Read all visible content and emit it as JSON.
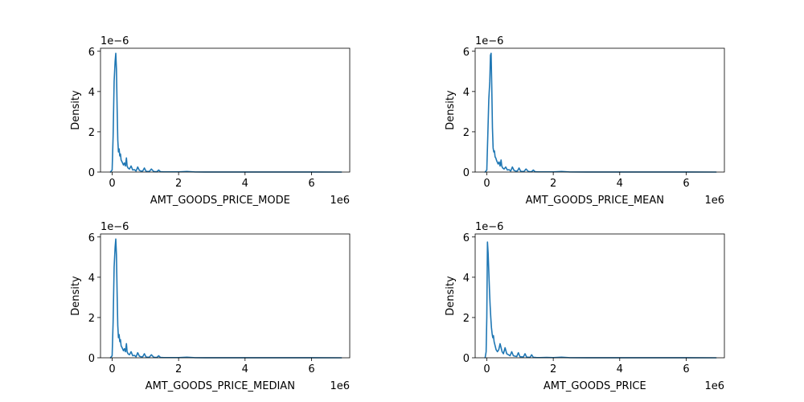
{
  "colors": {
    "line": "#1f77b4",
    "axes": "#000000",
    "background": "#ffffff"
  },
  "chart_data": [
    {
      "type": "line",
      "xlabel": "AMT_GOODS_PRICE_MODE",
      "ylabel": "Density",
      "x_offset_label": "1e6",
      "y_offset_label": "1e−6",
      "xlim": [
        -0.35,
        7.15
      ],
      "ylim": [
        0,
        6.15
      ],
      "xticks": [
        0,
        2,
        4,
        6
      ],
      "yticks": [
        0,
        2,
        4,
        6
      ],
      "series": [
        {
          "x": [
            -0.05,
            0.0,
            0.03,
            0.06,
            0.09,
            0.11,
            0.13,
            0.15,
            0.17,
            0.19,
            0.21,
            0.23,
            0.25,
            0.27,
            0.3,
            0.34,
            0.37,
            0.4,
            0.43,
            0.45,
            0.48,
            0.52,
            0.57,
            0.62,
            0.67,
            0.72,
            0.77,
            0.82,
            0.87,
            0.92,
            0.97,
            1.02,
            1.07,
            1.12,
            1.18,
            1.25,
            1.3,
            1.35,
            1.4,
            1.45,
            1.55,
            1.65,
            1.8,
            2.0,
            2.25,
            2.5,
            3.0,
            4.0,
            5.0,
            6.0,
            6.9
          ],
          "values": [
            0,
            0.1,
            1.8,
            4.5,
            5.5,
            5.9,
            5.1,
            3.2,
            1.6,
            1.0,
            1.15,
            0.8,
            0.9,
            0.6,
            0.5,
            0.35,
            0.45,
            0.3,
            0.7,
            0.3,
            0.2,
            0.15,
            0.3,
            0.1,
            0.12,
            0.05,
            0.25,
            0.08,
            0.05,
            0.05,
            0.2,
            0.04,
            0.03,
            0.03,
            0.15,
            0.03,
            0.02,
            0.02,
            0.1,
            0.02,
            0.01,
            0.01,
            0.01,
            0.01,
            0.03,
            0.005,
            0.003,
            0.002,
            0.001,
            0.001,
            0
          ]
        }
      ]
    },
    {
      "type": "line",
      "xlabel": "AMT_GOODS_PRICE_MEAN",
      "ylabel": "Density",
      "x_offset_label": "1e6",
      "y_offset_label": "1e−6",
      "xlim": [
        -0.35,
        7.15
      ],
      "ylim": [
        0,
        6.15
      ],
      "xticks": [
        0,
        2,
        4,
        6
      ],
      "yticks": [
        0,
        2,
        4,
        6
      ],
      "series": [
        {
          "x": [
            -0.05,
            0.0,
            0.03,
            0.06,
            0.09,
            0.11,
            0.13,
            0.15,
            0.17,
            0.19,
            0.21,
            0.23,
            0.25,
            0.27,
            0.3,
            0.34,
            0.37,
            0.4,
            0.43,
            0.45,
            0.48,
            0.52,
            0.57,
            0.62,
            0.67,
            0.72,
            0.77,
            0.82,
            0.87,
            0.92,
            0.97,
            1.02,
            1.07,
            1.12,
            1.18,
            1.25,
            1.3,
            1.35,
            1.4,
            1.45,
            1.55,
            1.65,
            1.8,
            2.0,
            2.25,
            2.5,
            3.0,
            4.0,
            5.0,
            6.0,
            6.9
          ],
          "values": [
            0,
            0.1,
            1.8,
            3.6,
            4.5,
            5.8,
            5.9,
            4.2,
            2.2,
            1.2,
            1.0,
            1.05,
            0.75,
            0.7,
            0.55,
            0.4,
            0.5,
            0.3,
            0.6,
            0.3,
            0.2,
            0.15,
            0.25,
            0.1,
            0.12,
            0.05,
            0.25,
            0.08,
            0.05,
            0.05,
            0.2,
            0.04,
            0.03,
            0.03,
            0.15,
            0.03,
            0.02,
            0.02,
            0.1,
            0.02,
            0.01,
            0.01,
            0.01,
            0.01,
            0.03,
            0.005,
            0.003,
            0.002,
            0.001,
            0.001,
            0
          ]
        }
      ]
    },
    {
      "type": "line",
      "xlabel": "AMT_GOODS_PRICE_MEDIAN",
      "ylabel": "Density",
      "x_offset_label": "1e6",
      "y_offset_label": "1e−6",
      "xlim": [
        -0.35,
        7.15
      ],
      "ylim": [
        0,
        6.15
      ],
      "xticks": [
        0,
        2,
        4,
        6
      ],
      "yticks": [
        0,
        2,
        4,
        6
      ],
      "series": [
        {
          "x": [
            -0.05,
            0.0,
            0.03,
            0.06,
            0.09,
            0.11,
            0.13,
            0.15,
            0.17,
            0.19,
            0.21,
            0.23,
            0.25,
            0.27,
            0.3,
            0.34,
            0.37,
            0.4,
            0.43,
            0.45,
            0.48,
            0.52,
            0.57,
            0.62,
            0.67,
            0.72,
            0.77,
            0.82,
            0.87,
            0.92,
            0.97,
            1.02,
            1.07,
            1.12,
            1.18,
            1.25,
            1.3,
            1.35,
            1.4,
            1.45,
            1.55,
            1.65,
            1.8,
            2.0,
            2.25,
            2.5,
            3.0,
            4.0,
            5.0,
            6.0,
            6.9
          ],
          "values": [
            0,
            0.1,
            1.8,
            4.5,
            5.5,
            5.9,
            5.1,
            3.2,
            1.6,
            1.0,
            1.15,
            0.8,
            0.9,
            0.6,
            0.5,
            0.35,
            0.45,
            0.3,
            0.7,
            0.3,
            0.2,
            0.15,
            0.3,
            0.1,
            0.12,
            0.05,
            0.25,
            0.08,
            0.05,
            0.05,
            0.2,
            0.04,
            0.03,
            0.03,
            0.15,
            0.03,
            0.02,
            0.02,
            0.1,
            0.02,
            0.01,
            0.01,
            0.01,
            0.01,
            0.03,
            0.005,
            0.003,
            0.002,
            0.001,
            0.001,
            0
          ]
        }
      ]
    },
    {
      "type": "line",
      "xlabel": "AMT_GOODS_PRICE",
      "ylabel": "Density",
      "x_offset_label": "1e6",
      "y_offset_label": "1e−6",
      "xlim": [
        -0.35,
        7.15
      ],
      "ylim": [
        0,
        6.15
      ],
      "xticks": [
        0,
        2,
        4,
        6
      ],
      "yticks": [
        0,
        2,
        4,
        6
      ],
      "series": [
        {
          "x": [
            -0.05,
            -0.02,
            0.0,
            0.02,
            0.04,
            0.06,
            0.08,
            0.1,
            0.12,
            0.14,
            0.16,
            0.18,
            0.2,
            0.22,
            0.25,
            0.28,
            0.32,
            0.36,
            0.4,
            0.43,
            0.46,
            0.5,
            0.55,
            0.6,
            0.65,
            0.7,
            0.75,
            0.8,
            0.85,
            0.9,
            0.95,
            1.0,
            1.05,
            1.1,
            1.15,
            1.2,
            1.25,
            1.3,
            1.35,
            1.4,
            1.45,
            1.5,
            1.6,
            1.8,
            2.0,
            2.25,
            2.5,
            3.0,
            4.0,
            5.0,
            6.0,
            6.9
          ],
          "values": [
            0,
            0.3,
            2.0,
            5.75,
            5.2,
            4.3,
            3.4,
            2.6,
            2.0,
            1.5,
            1.2,
            1.0,
            1.1,
            0.8,
            0.6,
            0.4,
            0.3,
            0.4,
            0.7,
            0.5,
            0.3,
            0.2,
            0.5,
            0.2,
            0.15,
            0.1,
            0.3,
            0.1,
            0.08,
            0.06,
            0.25,
            0.05,
            0.05,
            0.04,
            0.2,
            0.03,
            0.03,
            0.02,
            0.15,
            0.02,
            0.02,
            0.01,
            0.01,
            0.02,
            0.01,
            0.03,
            0.005,
            0.003,
            0.002,
            0.001,
            0.001,
            0
          ]
        }
      ]
    }
  ]
}
